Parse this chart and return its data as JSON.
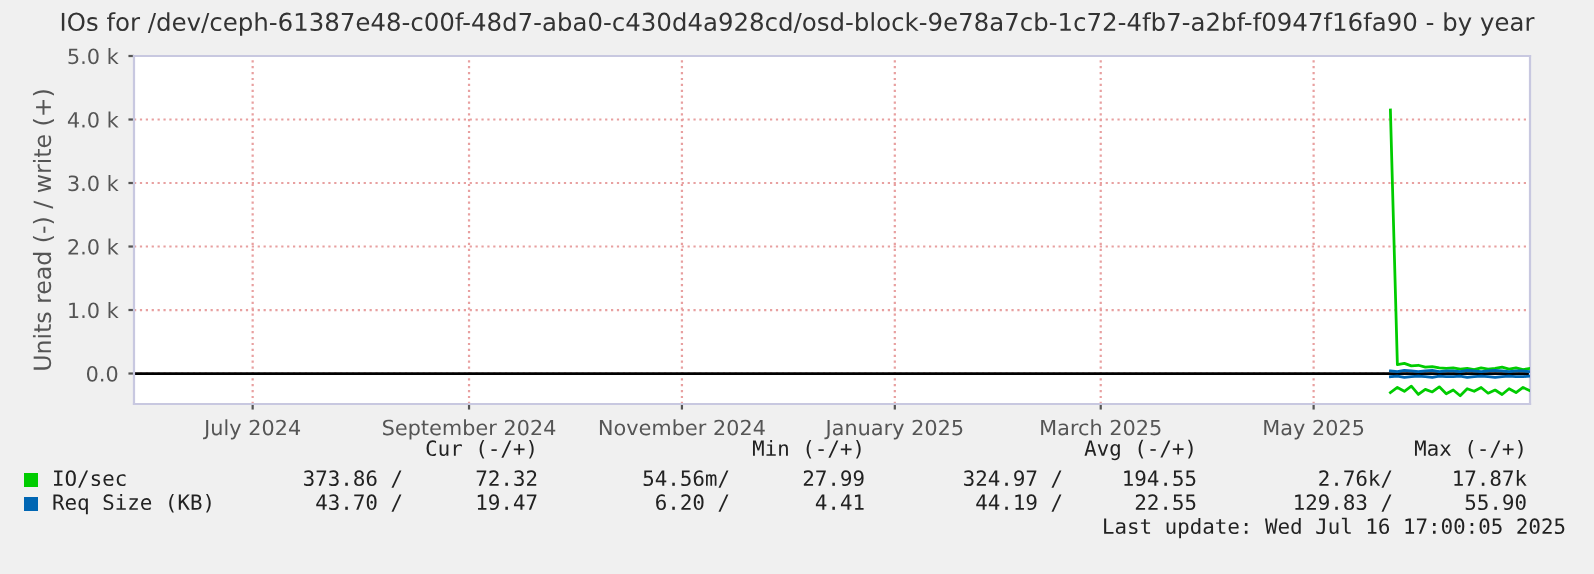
{
  "chart_data": {
    "type": "line",
    "title": "IOs for /dev/ceph-61387e48-c00f-48d7-aba0-c430d4a928cd/osd-block-9e78a7cb-1c72-4fb7-a2bf-f0947f16fa90 - by year",
    "ylabel": "Units read (-) / write (+)",
    "x": [
      "2025-05-23",
      "2025-05-25",
      "2025-05-27",
      "2025-05-29",
      "2025-05-31",
      "2025-06-02",
      "2025-06-04",
      "2025-06-06",
      "2025-06-08",
      "2025-06-10",
      "2025-06-12",
      "2025-06-14",
      "2025-06-16",
      "2025-06-18",
      "2025-06-20",
      "2025-06-22",
      "2025-06-24",
      "2025-06-26",
      "2025-06-28",
      "2025-06-30",
      "2025-07-02"
    ],
    "series": [
      {
        "name": "IO/sec",
        "color": "#00cc00",
        "values": [
          4150,
          140,
          160,
          120,
          130,
          100,
          110,
          90,
          80,
          90,
          70,
          80,
          60,
          90,
          70,
          80,
          100,
          70,
          90,
          60,
          80
        ]
      },
      {
        "color": "#00cc00",
        "values": [
          -300,
          -220,
          -280,
          -200,
          -330,
          -250,
          -290,
          -210,
          -320,
          -260,
          -350,
          -240,
          -280,
          -220,
          -310,
          -260,
          -330,
          -240,
          -300,
          -220,
          -270
        ]
      },
      {
        "name": "Req Size (KB)",
        "color": "#0066b3",
        "values": [
          40,
          30,
          50,
          40,
          30,
          40,
          50,
          30,
          40,
          40,
          30,
          50,
          40,
          30,
          40,
          50,
          40,
          30,
          40,
          40,
          30
        ]
      },
      {
        "color": "#0066b3",
        "values": [
          -50,
          -40,
          -60,
          -50,
          -40,
          -50,
          -60,
          -40,
          -50,
          -50,
          -40,
          -60,
          -50,
          -40,
          -50,
          -60,
          -50,
          -40,
          -50,
          -50,
          -40
        ]
      }
    ],
    "xlim": [
      "2024-05-28",
      "2025-07-02"
    ],
    "xticks": [
      {
        "value": "2024-07-01",
        "label": "July 2024"
      },
      {
        "value": "2024-09-01",
        "label": "September 2024"
      },
      {
        "value": "2024-11-01",
        "label": "November 2024"
      },
      {
        "value": "2025-01-01",
        "label": "January 2025"
      },
      {
        "value": "2025-03-01",
        "label": "March 2025"
      },
      {
        "value": "2025-05-01",
        "label": "May 2025"
      }
    ],
    "ylim": [
      -480,
      5000
    ],
    "yticks": [
      {
        "value": 0,
        "label": "0.0"
      },
      {
        "value": 1000,
        "label": "1.0 k"
      },
      {
        "value": 2000,
        "label": "2.0 k"
      },
      {
        "value": 3000,
        "label": "3.0 k"
      },
      {
        "value": 4000,
        "label": "4.0 k"
      },
      {
        "value": 5000,
        "label": "5.0 k"
      }
    ],
    "ref_lines": [
      {
        "axis": "y",
        "value": 0,
        "color": "#000000"
      }
    ],
    "grid": true,
    "legend": "bottom",
    "annotations": [
      "Cur (-/+)",
      "Min (-/+)",
      "Avg (-/+)",
      "Max (-/+)",
      "373.86 /",
      "72.32",
      "54.56m/",
      "27.99",
      "324.97 /",
      "194.55",
      "2.76k/",
      "17.87k",
      "43.70 /",
      "19.47",
      "6.20 /",
      "4.41",
      "44.19 /",
      "22.55",
      "129.83 /",
      "55.90",
      "Last update: Wed Jul 16 17:00:05 2025"
    ]
  }
}
